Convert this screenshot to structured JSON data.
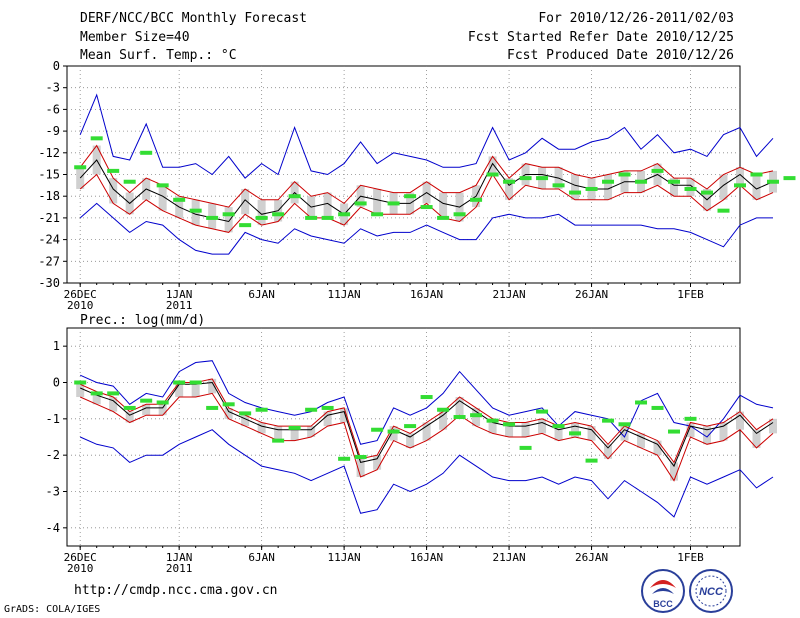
{
  "header": {
    "title": "DERF/NCC/BCC Monthly Forecast",
    "member_size": "Member Size=40",
    "variable": "Mean Surf. Temp.: °C",
    "period": "For 2010/12/26-2011/02/03",
    "started": "Fcst Started Refer Date 2010/12/25",
    "produced": "Fcst Produced Date 2010/12/26"
  },
  "footer": {
    "url": "http://cmdp.ncc.cma.gov.cn",
    "credit": "GrADS: COLA/IGES",
    "logo1_text": "BCC",
    "logo2_text": "NCC"
  },
  "colors": {
    "envelope": "#0000cc",
    "spread": "#cc0000",
    "mean": "#000000",
    "bar": "#d0d0d0",
    "marker": "#33dd33",
    "grid": "#888888"
  },
  "chart_data": [
    {
      "type": "line",
      "title": "Mean Surf. Temp.: °C",
      "x_tick_labels": [
        "26DEC\n2010",
        "1JAN\n2011",
        "6JAN",
        "11JAN",
        "16JAN",
        "21JAN",
        "26JAN",
        "1FEB"
      ],
      "x_tick_days": [
        0,
        6,
        11,
        16,
        21,
        26,
        31,
        37
      ],
      "x_range": [
        -0.8,
        40
      ],
      "ylim": [
        -30,
        0
      ],
      "y_ticks": [
        0,
        -3,
        -6,
        -9,
        -12,
        -15,
        -18,
        -21,
        -24,
        -27,
        -30
      ],
      "series": [
        {
          "name": "max",
          "values": [
            -9.5,
            -4,
            -12.5,
            -13,
            -8,
            -14,
            -14,
            -13.5,
            -15,
            -12.5,
            -15.5,
            -13.5,
            -15,
            -8.5,
            -14.5,
            -15,
            -13.5,
            -10.5,
            -13.5,
            -12,
            -12.5,
            -13,
            -14,
            -14,
            -13.5,
            -8.5,
            -13,
            -12,
            -10,
            -11.5,
            -11.5,
            -10.5,
            -10,
            -8.5,
            -11.5,
            -9.5,
            -12,
            -11.5,
            -12.5,
            -9.5,
            -8.5,
            -12.5,
            -10
          ]
        },
        {
          "name": "upper",
          "values": [
            -14,
            -11,
            -15.5,
            -17.5,
            -15.5,
            -16.5,
            -18,
            -18.5,
            -19,
            -19.5,
            -17,
            -18.5,
            -18.5,
            -16,
            -18,
            -17.5,
            -19,
            -16.5,
            -17,
            -17.5,
            -17.5,
            -16,
            -17.5,
            -17.5,
            -16.5,
            -12.5,
            -15.5,
            -13.5,
            -14,
            -14,
            -15,
            -15.5,
            -15,
            -14.5,
            -14.5,
            -13.5,
            -15.5,
            -15.5,
            -17,
            -15,
            -14,
            -15,
            -14.5
          ]
        },
        {
          "name": "mean",
          "values": [
            -15.5,
            -13,
            -17,
            -19,
            -17,
            -18,
            -19.5,
            -20.5,
            -21,
            -21.5,
            -18.5,
            -20.5,
            -20,
            -17.5,
            -19.5,
            -19,
            -20.5,
            -18,
            -18.5,
            -19,
            -19,
            -17.5,
            -19,
            -19.5,
            -18,
            -13.5,
            -16.5,
            -15,
            -15,
            -15.5,
            -16.5,
            -17,
            -17,
            -16,
            -16,
            -15,
            -16.5,
            -16.5,
            -18.5,
            -16.5,
            -15,
            -17,
            -16
          ]
        },
        {
          "name": "lower",
          "values": [
            -17,
            -15,
            -19,
            -20.5,
            -18.5,
            -20,
            -21,
            -22,
            -22.5,
            -23,
            -20.5,
            -22,
            -21.5,
            -19,
            -21,
            -21,
            -22,
            -19.5,
            -20.5,
            -20.5,
            -20.5,
            -19,
            -21,
            -21.5,
            -19.5,
            -15,
            -18.5,
            -16.5,
            -17,
            -17,
            -18.5,
            -18.5,
            -18.5,
            -17.5,
            -17.5,
            -16.5,
            -18,
            -18,
            -20,
            -18.5,
            -16.5,
            -18.5,
            -17.5
          ]
        },
        {
          "name": "min",
          "values": [
            -21,
            -19,
            -21,
            -23,
            -21.5,
            -22,
            -24,
            -25.5,
            -26,
            -26,
            -23,
            -24,
            -24.5,
            -22.5,
            -23.5,
            -24,
            -24.5,
            -22.5,
            -23.5,
            -23,
            -23,
            -22,
            -23,
            -24,
            -24,
            -21,
            -20.5,
            -21,
            -21,
            -20.5,
            -22,
            -22,
            -22,
            -22,
            -22,
            -22.5,
            -22.5,
            -23,
            -24,
            -25,
            -22,
            -21,
            -21
          ]
        },
        {
          "name": "observed",
          "values": [
            -14,
            -10,
            -14.5,
            -16,
            -12,
            -16.5,
            -18.5,
            -20,
            -21,
            -20.5,
            -22,
            -21,
            -20.5,
            -18,
            -21,
            -21,
            -20.5,
            -19,
            -20.5,
            -19,
            -18,
            -19.5,
            -21,
            -20.5,
            -18.5,
            -15,
            -16,
            -15.5,
            -15.5,
            -16.5,
            -17.5,
            -17,
            -16,
            -15,
            -16,
            -14.5,
            -16,
            -17,
            -17.5,
            -20,
            -16.5,
            -15,
            -16,
            -15.5
          ]
        }
      ]
    },
    {
      "type": "line",
      "title": "Prec.: log(mm/d)",
      "x_tick_labels": [
        "26DEC\n2010",
        "1JAN\n2011",
        "6JAN",
        "11JAN",
        "16JAN",
        "21JAN",
        "26JAN",
        "1FEB"
      ],
      "x_tick_days": [
        0,
        6,
        11,
        16,
        21,
        26,
        31,
        37
      ],
      "x_range": [
        -0.8,
        40
      ],
      "ylim": [
        -4.5,
        1.5
      ],
      "y_ticks": [
        1,
        0,
        -1,
        -2,
        -3,
        -4
      ],
      "series": [
        {
          "name": "max",
          "values": [
            0.2,
            0,
            -0.1,
            -0.6,
            -0.3,
            -0.4,
            0.3,
            0.55,
            0.6,
            -0.3,
            -0.55,
            -0.7,
            -0.8,
            -0.9,
            -0.8,
            -0.55,
            -0.4,
            -1.7,
            -1.6,
            -0.7,
            -0.9,
            -0.7,
            -0.3,
            0.3,
            -0.2,
            -0.7,
            -0.9,
            -0.8,
            -0.7,
            -1.2,
            -0.8,
            -0.9,
            -1,
            -1.5,
            -0.5,
            -0.3,
            -1.1,
            -1.2,
            -1.5,
            -1,
            -0.35,
            -0.6,
            -0.7
          ]
        },
        {
          "name": "upper",
          "values": [
            -0.05,
            -0.25,
            -0.4,
            -0.8,
            -0.6,
            -0.6,
            0,
            0,
            0.1,
            -0.7,
            -0.9,
            -1.1,
            -1.2,
            -1.2,
            -1.2,
            -0.8,
            -0.7,
            -2.1,
            -2,
            -1.2,
            -1.4,
            -1.1,
            -0.8,
            -0.4,
            -0.7,
            -1,
            -1.1,
            -1.1,
            -1,
            -1.2,
            -1.1,
            -1.2,
            -1.7,
            -1.2,
            -1.4,
            -1.6,
            -2.2,
            -1.1,
            -1.2,
            -1.1,
            -0.8,
            -1.3,
            -1
          ]
        },
        {
          "name": "mean",
          "values": [
            -0.15,
            -0.35,
            -0.5,
            -0.9,
            -0.7,
            -0.7,
            -0.05,
            -0.05,
            0,
            -0.8,
            -1,
            -1.2,
            -1.3,
            -1.3,
            -1.3,
            -0.9,
            -0.8,
            -2.2,
            -2.1,
            -1.3,
            -1.5,
            -1.2,
            -0.9,
            -0.5,
            -0.8,
            -1.1,
            -1.2,
            -1.2,
            -1.1,
            -1.3,
            -1.2,
            -1.3,
            -1.8,
            -1.3,
            -1.5,
            -1.7,
            -2.3,
            -1.2,
            -1.3,
            -1.2,
            -0.9,
            -1.4,
            -1.1
          ]
        },
        {
          "name": "lower",
          "values": [
            -0.4,
            -0.6,
            -0.8,
            -1.1,
            -0.9,
            -0.9,
            -0.4,
            -0.4,
            -0.3,
            -1,
            -1.2,
            -1.4,
            -1.6,
            -1.6,
            -1.5,
            -1.2,
            -1.1,
            -2.6,
            -2.4,
            -1.6,
            -1.8,
            -1.6,
            -1.3,
            -0.9,
            -1.2,
            -1.4,
            -1.5,
            -1.5,
            -1.4,
            -1.6,
            -1.5,
            -1.6,
            -2.1,
            -1.6,
            -1.8,
            -2,
            -2.7,
            -1.5,
            -1.7,
            -1.6,
            -1.3,
            -1.8,
            -1.4
          ]
        },
        {
          "name": "min",
          "values": [
            -1.5,
            -1.7,
            -1.8,
            -2.2,
            -2,
            -2,
            -1.7,
            -1.5,
            -1.3,
            -1.7,
            -2,
            -2.3,
            -2.4,
            -2.5,
            -2.7,
            -2.5,
            -2.3,
            -3.6,
            -3.5,
            -2.8,
            -3,
            -2.8,
            -2.5,
            -2,
            -2.3,
            -2.6,
            -2.7,
            -2.7,
            -2.6,
            -2.8,
            -2.6,
            -2.7,
            -3.2,
            -2.7,
            -3,
            -3.3,
            -3.7,
            -2.6,
            -2.8,
            -2.6,
            -2.4,
            -2.9,
            -2.6
          ]
        },
        {
          "name": "observed",
          "values": [
            0,
            -0.3,
            -0.3,
            -0.7,
            -0.5,
            -0.55,
            0,
            0,
            -0.7,
            -0.6,
            -0.85,
            -0.75,
            -1.6,
            -1.25,
            -0.75,
            -0.7,
            -2.1,
            -2.05,
            -1.3,
            -1.35,
            -1.2,
            -0.4,
            -0.75,
            -0.95,
            -0.9,
            -1.05,
            -1.15,
            -1.8,
            -0.8,
            -1.2,
            -1.4,
            -2.15,
            -1.05,
            -1.15,
            -0.55,
            -0.7,
            -1.35,
            -1
          ]
        }
      ]
    }
  ]
}
